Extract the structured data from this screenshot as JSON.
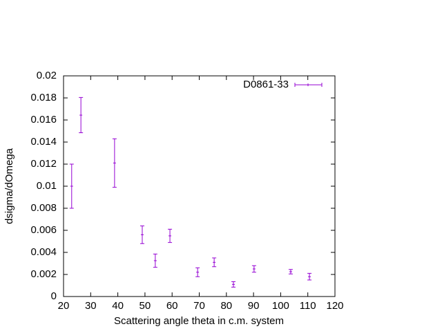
{
  "chart_data": {
    "type": "scatter",
    "xlabel": "Scattering angle theta in c.m. system",
    "ylabel": "dsigma/dOmega",
    "xlim": [
      20,
      120
    ],
    "xticks": [
      20,
      30,
      40,
      50,
      60,
      70,
      80,
      90,
      100,
      110,
      120
    ],
    "ylim": [
      0,
      0.02
    ],
    "yticks": [
      0,
      0.002,
      0.004,
      0.006,
      0.008,
      0.01,
      0.012,
      0.014,
      0.016,
      0.018,
      0.02
    ],
    "legend": "top-right",
    "series": [
      {
        "name": "D0861-33",
        "color": "#9400d3",
        "x": [
          23.0,
          26.4,
          38.8,
          49.0,
          53.8,
          59.2,
          69.4,
          75.5,
          82.6,
          90.2,
          103.7,
          110.6
        ],
        "values": [
          0.01,
          0.01644,
          0.0121,
          0.0056,
          0.00325,
          0.0055,
          0.0022,
          0.0031,
          0.0011,
          0.0025,
          0.00225,
          0.0018
        ],
        "errors": [
          0.002,
          0.0016,
          0.0022,
          0.0008,
          0.0006,
          0.0006,
          0.0004,
          0.0004,
          0.00025,
          0.0003,
          0.0002,
          0.0003
        ]
      }
    ]
  }
}
